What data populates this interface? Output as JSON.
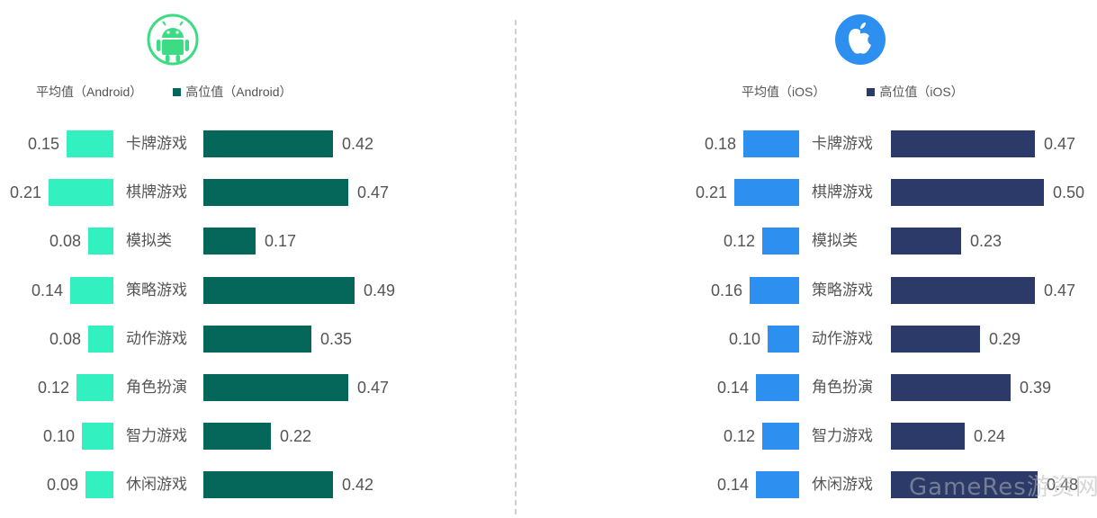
{
  "chart_data": [
    {
      "type": "bar",
      "platform": "Android",
      "icon": "android-icon",
      "categories": [
        "卡牌游戏",
        "棋牌游戏",
        "模拟类",
        "策略游戏",
        "动作游戏",
        "角色扮演",
        "智力游戏",
        "休闲游戏"
      ],
      "series": [
        {
          "name": "平均值（Android）",
          "values": [
            0.15,
            0.21,
            0.08,
            0.14,
            0.08,
            0.12,
            0.1,
            0.09
          ],
          "labels": [
            "0.15",
            "0.21",
            "0.08",
            "0.14",
            "0.08",
            "0.12",
            "0.10",
            "0.09"
          ],
          "color": "#33f0c0"
        },
        {
          "name": "高位值（Android）",
          "values": [
            0.42,
            0.47,
            0.17,
            0.49,
            0.35,
            0.47,
            0.22,
            0.42
          ],
          "labels": [
            "0.42",
            "0.47",
            "0.17",
            "0.49",
            "0.35",
            "0.47",
            "0.22",
            "0.42"
          ],
          "color": "#04675a"
        }
      ],
      "legend_position": "top",
      "grid": false
    },
    {
      "type": "bar",
      "platform": "iOS",
      "icon": "apple-icon",
      "categories": [
        "卡牌游戏",
        "棋牌游戏",
        "模拟类",
        "策略游戏",
        "动作游戏",
        "角色扮演",
        "智力游戏",
        "休闲游戏"
      ],
      "series": [
        {
          "name": "平均值（iOS）",
          "values": [
            0.18,
            0.21,
            0.12,
            0.16,
            0.1,
            0.14,
            0.12,
            0.14
          ],
          "labels": [
            "0.18",
            "0.21",
            "0.12",
            "0.16",
            "0.10",
            "0.14",
            "0.12",
            "0.14"
          ],
          "color": "#2d8ff0"
        },
        {
          "name": "高位值（iOS）",
          "values": [
            0.47,
            0.5,
            0.23,
            0.47,
            0.29,
            0.39,
            0.24,
            0.48
          ],
          "labels": [
            "0.47",
            "0.50",
            "0.23",
            "0.47",
            "0.29",
            "0.39",
            "0.24",
            "0.48"
          ],
          "color": "#2b3a68"
        }
      ],
      "legend_position": "top",
      "grid": false
    }
  ],
  "colors": {
    "android_icon": "#3ddc84",
    "apple_icon": "#2d8ff0",
    "divider": "#cfcfcf",
    "text": "#555555"
  },
  "watermark": {
    "text": "GameRes游资网"
  }
}
